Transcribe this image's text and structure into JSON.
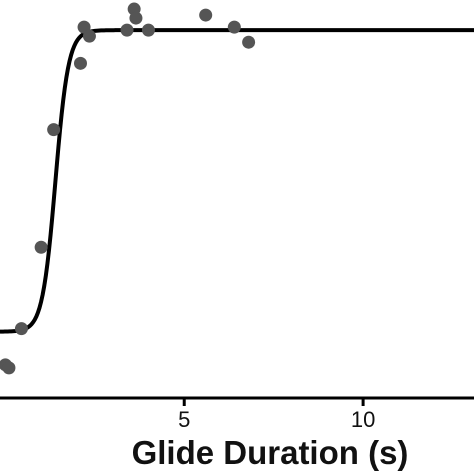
{
  "chart_data": {
    "type": "scatter",
    "xlabel": "Glide Duration (s)",
    "ylabel": "",
    "xlim": [
      -0.15,
      13.1
    ],
    "ylim": [
      -0.22,
      1.1
    ],
    "x_ticks": [
      5,
      10
    ],
    "grid": false,
    "legend": "none",
    "colors": {
      "points": "#555555",
      "curve": "#000000",
      "axis": "#000000"
    },
    "series": [
      {
        "type": "scatter",
        "points": [
          {
            "x": 0.0,
            "y": -0.11
          },
          {
            "x": 0.1,
            "y": -0.12
          },
          {
            "x": 0.45,
            "y": 0.01
          },
          {
            "x": 1.0,
            "y": 0.28
          },
          {
            "x": 1.35,
            "y": 0.67
          },
          {
            "x": 2.1,
            "y": 0.89
          },
          {
            "x": 2.2,
            "y": 1.01
          },
          {
            "x": 2.35,
            "y": 0.98
          },
          {
            "x": 3.4,
            "y": 1.0
          },
          {
            "x": 3.6,
            "y": 1.07
          },
          {
            "x": 3.65,
            "y": 1.04
          },
          {
            "x": 4.0,
            "y": 1.0
          },
          {
            "x": 5.6,
            "y": 1.05
          },
          {
            "x": 6.4,
            "y": 1.01
          },
          {
            "x": 6.8,
            "y": 0.96
          }
        ]
      },
      {
        "type": "line",
        "model": "logistic fit",
        "midpoint": 1.4,
        "slope": 5.5,
        "lower": 0.0,
        "upper": 1.0
      }
    ]
  }
}
